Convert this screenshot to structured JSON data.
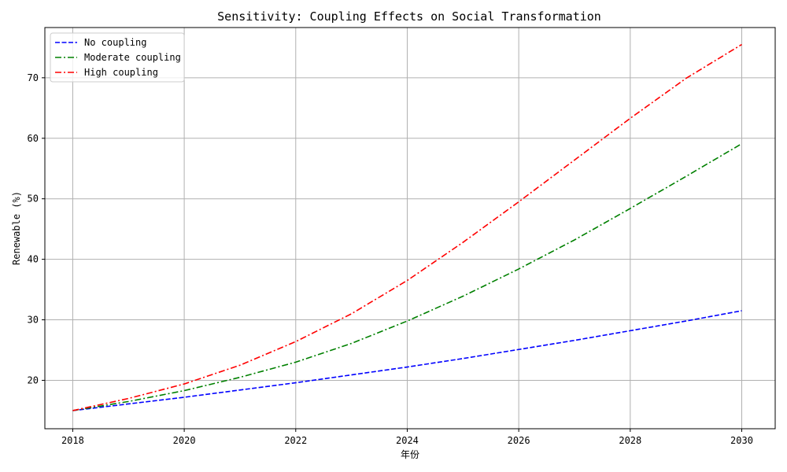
{
  "chart_data": {
    "type": "line",
    "title": "Sensitivity: Coupling Effects on Social Transformation",
    "xlabel": "年份",
    "ylabel": "Renewable (%)",
    "xlim": [
      2017.5,
      2030.6
    ],
    "ylim": [
      12,
      78.3
    ],
    "xticks": [
      2018,
      2020,
      2022,
      2024,
      2026,
      2028,
      2030
    ],
    "yticks": [
      20,
      30,
      40,
      50,
      60,
      70
    ],
    "grid": true,
    "legend_position": "top-left",
    "x": [
      2018,
      2019,
      2020,
      2021,
      2022,
      2023,
      2024,
      2025,
      2026,
      2027,
      2028,
      2029,
      2030
    ],
    "series": [
      {
        "name": "No coupling",
        "color": "#0000ff",
        "dash": "dashed",
        "values": [
          15.0,
          16.1,
          17.2,
          18.4,
          19.6,
          20.9,
          22.2,
          23.6,
          25.1,
          26.6,
          28.2,
          29.8,
          31.5
        ]
      },
      {
        "name": "Moderate coupling",
        "color": "#008000",
        "dash": "dashdot",
        "values": [
          15.0,
          16.5,
          18.3,
          20.5,
          23.0,
          26.1,
          29.8,
          33.9,
          38.4,
          43.2,
          48.4,
          53.7,
          59.1
        ]
      },
      {
        "name": "High coupling",
        "color": "#ff0000",
        "dash": "dashdot",
        "values": [
          15.0,
          17.0,
          19.4,
          22.5,
          26.4,
          31.0,
          36.5,
          42.8,
          49.5,
          56.4,
          63.3,
          69.9,
          75.5
        ]
      }
    ]
  }
}
